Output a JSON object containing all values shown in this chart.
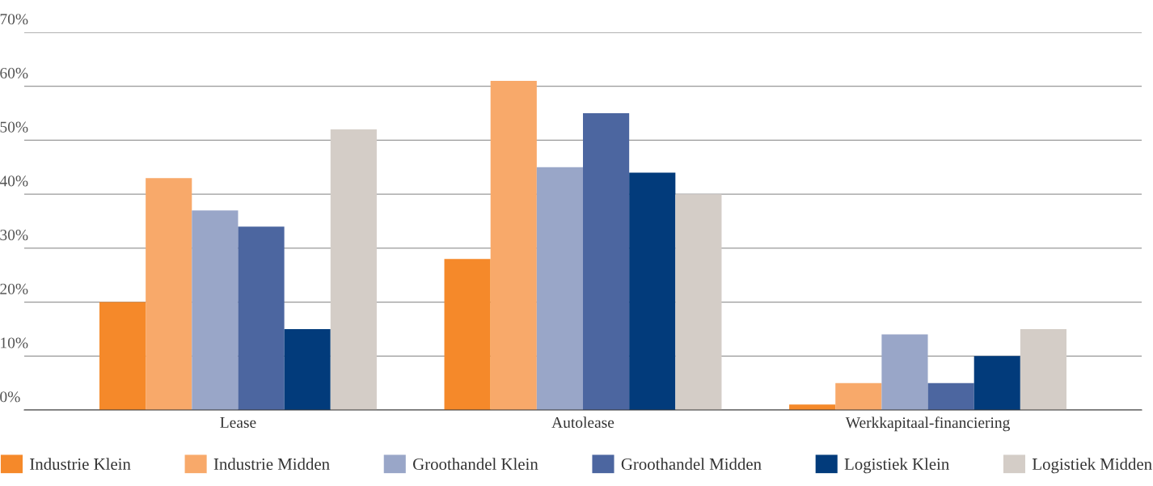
{
  "chart_data": {
    "type": "bar",
    "categories": [
      "Lease",
      "Autolease",
      "Werkkapitaal-financiering"
    ],
    "series": [
      {
        "name": "Industrie Klein",
        "color": "#f5892a",
        "values": [
          20,
          28,
          1
        ]
      },
      {
        "name": "Industrie Midden",
        "color": "#f8a96a",
        "values": [
          43,
          61,
          5
        ]
      },
      {
        "name": "Groothandel Klein",
        "color": "#99a6c8",
        "values": [
          37,
          45,
          14
        ]
      },
      {
        "name": "Groothandel Midden",
        "color": "#4c66a0",
        "values": [
          34,
          55,
          5
        ]
      },
      {
        "name": "Logistiek Klein",
        "color": "#023b7b",
        "values": [
          15,
          44,
          10
        ]
      },
      {
        "name": "Logistiek Midden",
        "color": "#d4cdc7",
        "values": [
          52,
          40,
          15
        ]
      }
    ],
    "ylim": [
      0,
      70
    ],
    "yticks": [
      {
        "value": 0,
        "label": "0%"
      },
      {
        "value": 10,
        "label": "10%"
      },
      {
        "value": 20,
        "label": "20%"
      },
      {
        "value": 30,
        "label": "30%"
      },
      {
        "value": 40,
        "label": "40%"
      },
      {
        "value": 50,
        "label": "50%"
      },
      {
        "value": 60,
        "label": "60%"
      },
      {
        "value": 70,
        "label": "70%"
      }
    ],
    "grid": "y",
    "legend": "bottom"
  }
}
